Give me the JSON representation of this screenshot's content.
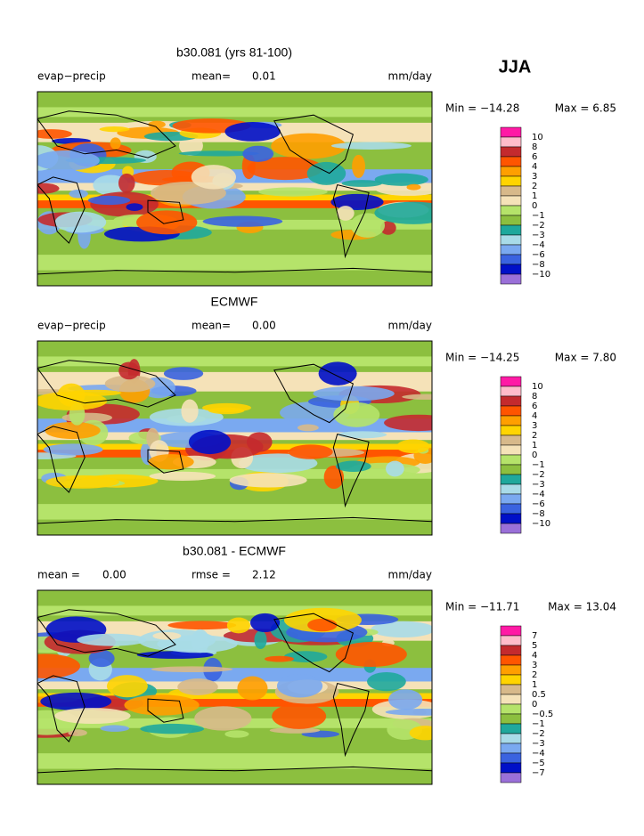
{
  "season": "JJA",
  "panels": [
    {
      "title": "b30.081 (yrs 81-100)",
      "header": [
        "evap−precip",
        "mean=",
        "0.01",
        "mm/day"
      ],
      "min": "Min = −14.28",
      "max": "Max =   6.85",
      "levels": [
        "10",
        "8",
        "6",
        "4",
        "3",
        "2",
        "1",
        "0",
        "−1",
        "−2",
        "−3",
        "−4",
        "−6",
        "−8",
        "−10"
      ]
    },
    {
      "title": "ECMWF",
      "header": [
        "evap−precip",
        "mean=",
        "0.00",
        "mm/day"
      ],
      "min": "Min = −14.25",
      "max": "Max =   7.80",
      "levels": [
        "10",
        "8",
        "6",
        "4",
        "3",
        "2",
        "1",
        "0",
        "−1",
        "−2",
        "−3",
        "−4",
        "−6",
        "−8",
        "−10"
      ]
    },
    {
      "title": "b30.081 - ECMWF",
      "header": [
        "mean =",
        "0.00",
        "rmse =",
        "2.12",
        "mm/day"
      ],
      "min": "Min = −11.71",
      "max": "Max =  13.04",
      "levels": [
        "7",
        "5",
        "4",
        "3",
        "2",
        "1",
        "0.5",
        "0",
        "−0.5",
        "−1",
        "−2",
        "−3",
        "−4",
        "−5",
        "−7"
      ]
    }
  ],
  "colors": [
    "#ff1aa5",
    "#ffbccb",
    "#c42a2e",
    "#ff5500",
    "#ff9f00",
    "#ffd400",
    "#d7b98a",
    "#f5e2b8",
    "#b5e36a",
    "#8cbf3f",
    "#1fa89c",
    "#a8dbe8",
    "#7aa9f0",
    "#3a63e0",
    "#0010c8",
    "#9a70d8"
  ]
}
